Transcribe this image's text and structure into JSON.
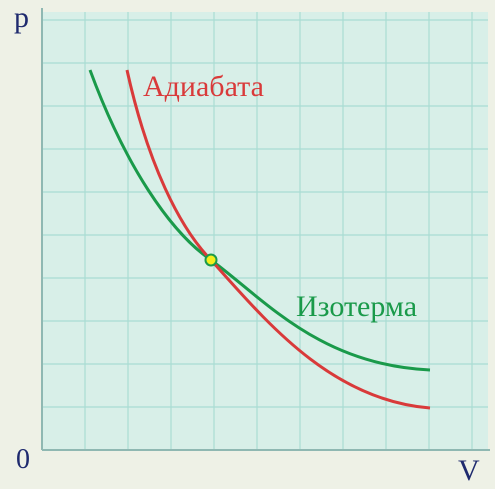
{
  "axes": {
    "y_label": "p",
    "x_label": "V",
    "origin": "0"
  },
  "curves": {
    "adiabat": "Адиабата",
    "isotherm": "Изотерма"
  }
}
